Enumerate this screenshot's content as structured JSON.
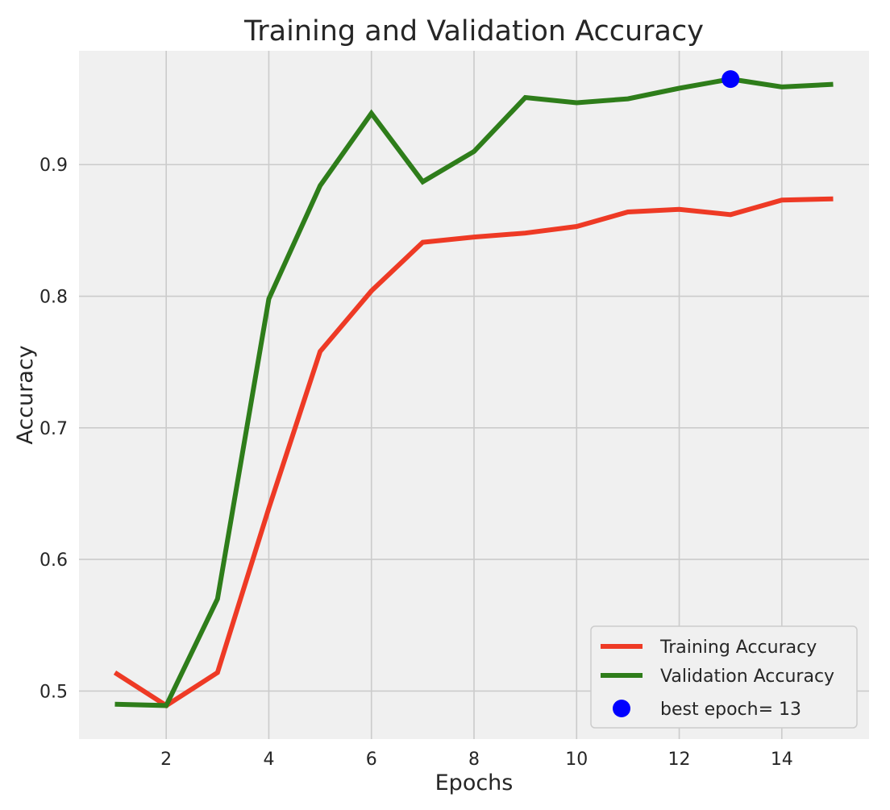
{
  "chart_data": {
    "type": "line",
    "title": "Training and Validation Accuracy",
    "xlabel": "Epochs",
    "ylabel": "Accuracy",
    "xlim": [
      0.3,
      15.7
    ],
    "ylim": [
      0.4635,
      0.9865
    ],
    "x_ticks": [
      2,
      4,
      6,
      8,
      10,
      12,
      14
    ],
    "y_ticks": [
      0.5,
      0.6,
      0.7,
      0.8,
      0.9
    ],
    "grid": true,
    "legend_position": "lower-right",
    "x": [
      1,
      2,
      3,
      4,
      5,
      6,
      7,
      8,
      9,
      10,
      11,
      12,
      13,
      14,
      15
    ],
    "series": [
      {
        "name": "Training Accuracy",
        "color": "#ee3a25",
        "values": [
          0.514,
          0.489,
          0.514,
          0.639,
          0.758,
          0.804,
          0.841,
          0.845,
          0.848,
          0.853,
          0.864,
          0.866,
          0.862,
          0.873,
          0.874
        ]
      },
      {
        "name": "Validation Accuracy",
        "color": "#2e7d1a",
        "values": [
          0.49,
          0.489,
          0.57,
          0.798,
          0.884,
          0.939,
          0.887,
          0.91,
          0.951,
          0.947,
          0.95,
          0.958,
          0.965,
          0.959,
          0.961
        ]
      }
    ],
    "best_point": {
      "label": "best epoch= 13",
      "x": 13,
      "y": 0.965,
      "color": "#0000ff"
    }
  },
  "colors": {
    "plot_background": "#f0f0f0",
    "grid": "#cbcbcb",
    "figure_background": "#ffffff",
    "legend_background": "#f0f0f0",
    "legend_border": "#cccccc"
  }
}
